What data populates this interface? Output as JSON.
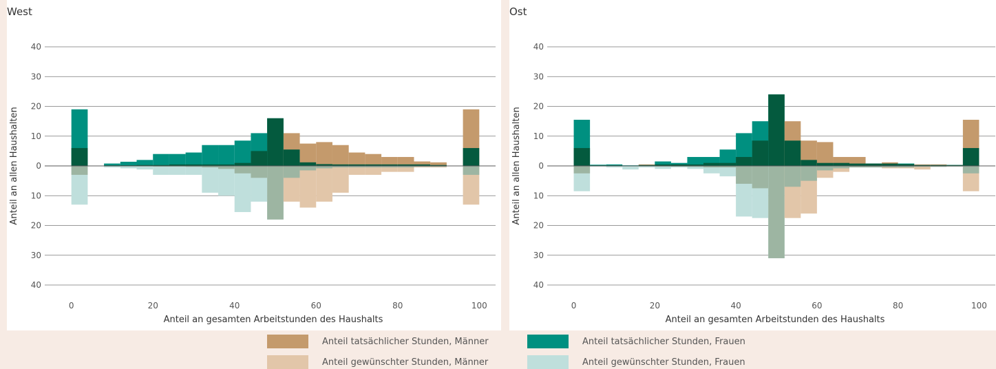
{
  "colors": {
    "men_actual": "#c49a6c",
    "men_desired": "#e2c6a9",
    "women_actual": "#009080",
    "women_desired": "#bfdfdc",
    "both_actual": "#045a3e",
    "both_desired": "#9db5a2",
    "axis": "#888888",
    "text": "#333333"
  },
  "legend": [
    {
      "key": "men_actual",
      "label": "Anteil tatsächlicher Stunden, Männer"
    },
    {
      "key": "women_actual",
      "label": "Anteil tatsächlicher Stunden, Frauen"
    },
    {
      "key": "men_desired",
      "label": "Anteil gewünschter Stunden, Männer"
    },
    {
      "key": "women_desired",
      "label": "Anteil gewünschter Stunden, Frauen"
    }
  ],
  "chart_data": [
    {
      "type": "bar",
      "title": "West",
      "xlabel": "Anteil an gesamten Arbeitstunden des Haushalts",
      "ylabel": "Anteil an allen Haushalten",
      "xlim": [
        -4,
        104
      ],
      "ylim": [
        -40,
        40
      ],
      "xticks": [
        0,
        20,
        40,
        60,
        80,
        100
      ],
      "yticks": [
        40,
        30,
        20,
        10,
        0,
        10,
        20,
        30,
        40
      ],
      "bin_width": 4,
      "x": [
        2,
        10,
        14,
        18,
        22,
        26,
        30,
        34,
        38,
        42,
        46,
        50,
        54,
        58,
        62,
        66,
        70,
        74,
        78,
        82,
        86,
        90,
        98
      ],
      "series": [
        {
          "name": "Anteil tatsächlicher Stunden, Frauen",
          "key": "women_actual",
          "direction": "up",
          "values": [
            19,
            0.8,
            1.4,
            2,
            4,
            4,
            4.5,
            7,
            7,
            8.5,
            11,
            16,
            5.5,
            1.2,
            0.6,
            0.5,
            0.5,
            0.5,
            0.5,
            0.5,
            0.5,
            0.3,
            6
          ]
        },
        {
          "name": "Anteil tatsächlicher Stunden, Männer",
          "key": "men_actual",
          "direction": "up",
          "values": [
            6,
            0.2,
            0.2,
            0.3,
            0.3,
            0.5,
            0.5,
            0.5,
            0.5,
            1,
            5,
            16,
            11,
            7.5,
            8,
            7,
            4.5,
            4,
            3,
            3,
            1.5,
            1.2,
            19
          ]
        },
        {
          "name": "Anteil gewünschter Stunden, Frauen",
          "key": "women_desired",
          "direction": "down",
          "values": [
            13,
            0.5,
            0.8,
            1.2,
            3,
            3,
            3,
            9,
            10,
            15.5,
            12,
            18,
            4,
            1.5,
            0.8,
            0.5,
            0.5,
            0.5,
            0.5,
            0.5,
            0.3,
            0.3,
            3
          ]
        },
        {
          "name": "Anteil gewünschter Stunden, Männer",
          "key": "men_desired",
          "direction": "down",
          "values": [
            3,
            0.1,
            0.1,
            0.1,
            0.2,
            0.2,
            0.3,
            0.5,
            1,
            2.5,
            4,
            18,
            12,
            14,
            12,
            9,
            3,
            3,
            2,
            2,
            0.5,
            0.5,
            13
          ]
        }
      ]
    },
    {
      "type": "bar",
      "title": "Ost",
      "xlabel": "Anteil an gesamten Arbeitstunden des Haushalts",
      "ylabel": "Anteil an allen Haushalten",
      "xlim": [
        -4,
        104
      ],
      "ylim": [
        -40,
        40
      ],
      "xticks": [
        0,
        20,
        40,
        60,
        80,
        100
      ],
      "yticks": [
        40,
        30,
        20,
        10,
        0,
        10,
        20,
        30,
        40
      ],
      "bin_width": 4,
      "x": [
        2,
        6,
        10,
        14,
        18,
        22,
        26,
        30,
        34,
        38,
        42,
        46,
        50,
        54,
        58,
        62,
        66,
        70,
        74,
        78,
        82,
        86,
        90,
        94,
        98
      ],
      "series": [
        {
          "name": "Anteil tatsächlicher Stunden, Frauen",
          "key": "women_actual",
          "direction": "up",
          "values": [
            15.5,
            0.4,
            0.5,
            0.2,
            0.3,
            1.5,
            1,
            3,
            3,
            5.5,
            11,
            15,
            24,
            8.5,
            2,
            1,
            1,
            0.8,
            0.8,
            0.8,
            0.8,
            0.3,
            0.3,
            0.3,
            6
          ]
        },
        {
          "name": "Anteil tatsächlicher Stunden, Männer",
          "key": "men_actual",
          "direction": "up",
          "values": [
            6,
            0.2,
            0.2,
            0.1,
            0.5,
            0.5,
            0.5,
            0.5,
            1,
            1,
            3,
            8.5,
            24,
            15,
            8.5,
            8,
            3,
            3,
            0.8,
            1.2,
            0.6,
            0.5,
            0.5,
            0.3,
            15.5
          ]
        },
        {
          "name": "Anteil gewünschter Stunden, Frauen",
          "key": "women_desired",
          "direction": "down",
          "values": [
            8.5,
            0.2,
            0.5,
            1.2,
            0.5,
            1,
            0.5,
            1,
            2.5,
            3.5,
            17,
            17.5,
            31,
            7,
            5,
            1.5,
            0.8,
            0.5,
            0.5,
            0.5,
            0.5,
            0.3,
            0.3,
            0.2,
            2.5
          ]
        },
        {
          "name": "Anteil gewünschter Stunden, Männer",
          "key": "men_desired",
          "direction": "down",
          "values": [
            2.5,
            0.1,
            0.1,
            0.1,
            0.1,
            0.2,
            0.2,
            0.3,
            0.5,
            0.5,
            6,
            7.5,
            31,
            17.5,
            16,
            4,
            2,
            0.5,
            0.5,
            0.8,
            0.8,
            1.2,
            0.3,
            0.2,
            8.5
          ]
        }
      ]
    }
  ]
}
